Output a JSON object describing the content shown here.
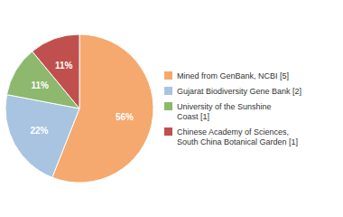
{
  "chart_data": {
    "type": "pie",
    "categories": [
      "Mined from GenBank, NCBI [5]",
      "Gujarat Biodiversity Gene Bank [2]",
      "University of the Sunshine\nCoast [1]",
      "Chinese Academy of Sciences,\nSouth China Botanical Garden [1]"
    ],
    "values": [
      56,
      22,
      11,
      11
    ],
    "value_labels": [
      "56%",
      "22%",
      "11%",
      "11%"
    ],
    "colors": [
      "#F5A96E",
      "#A8C4E0",
      "#8DB86E",
      "#C0504D"
    ],
    "data_labels": true,
    "legend": "right"
  }
}
